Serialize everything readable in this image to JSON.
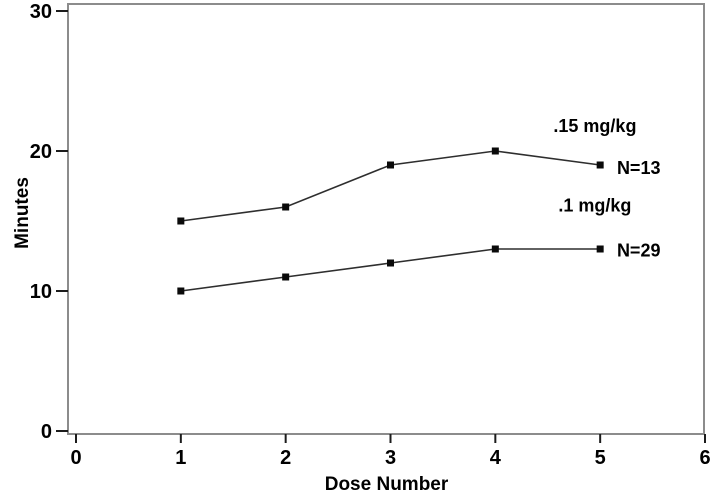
{
  "figure": {
    "background": "#ffffff",
    "frame_color": "#8c8c8c",
    "tick_color": "#1c1c1c",
    "text_color": "#000000",
    "line_color": "#2e2e2e",
    "marker_color": "#0a0a0a"
  },
  "chart_data": {
    "type": "line",
    "title": "",
    "xlabel": "Dose Number",
    "ylabel": "Minutes",
    "xlim": [
      0,
      6
    ],
    "ylim": [
      0,
      30
    ],
    "xticks": [
      0,
      1,
      2,
      3,
      4,
      5,
      6
    ],
    "yticks": [
      0,
      10,
      20,
      30
    ],
    "grid": false,
    "marker": "square",
    "legend_position": "inline-annotations",
    "x": [
      1,
      2,
      3,
      4,
      5
    ],
    "series": [
      {
        "name": ".15 mg/kg",
        "n_label": "N=13",
        "values": [
          15,
          16,
          19,
          20,
          19
        ],
        "name_label_pos": {
          "x": 4.95,
          "y": 21.8
        },
        "n_label_pos": {
          "x": 5.16,
          "y": 18.8
        }
      },
      {
        "name": ".1 mg/kg",
        "n_label": "N=29",
        "values": [
          10,
          11,
          12,
          13,
          13
        ],
        "name_label_pos": {
          "x": 4.95,
          "y": 16.1
        },
        "n_label_pos": {
          "x": 5.16,
          "y": 12.9
        }
      }
    ]
  }
}
